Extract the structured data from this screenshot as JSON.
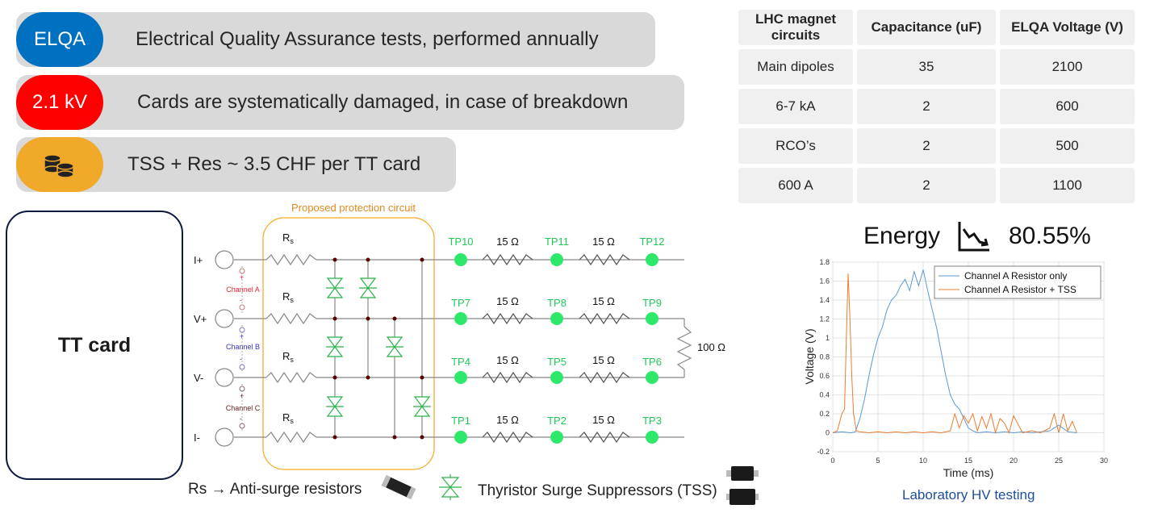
{
  "pills": [
    {
      "tag": "ELQA",
      "text": "Electrical Quality Assurance tests, performed annually",
      "color": "#0070c0"
    },
    {
      "tag": "2.1 kV",
      "text": "Cards are systematically damaged, in case of breakdown",
      "color": "#ff0000"
    },
    {
      "tag_icon": "coins-icon",
      "text": "TSS + Res ~ 3.5 CHF per TT card",
      "color": "#f0a929"
    }
  ],
  "table": {
    "headers": [
      "LHC magnet circuits",
      "Capacitance (uF)",
      "ELQA Voltage (V)"
    ],
    "rows": [
      [
        "Main dipoles",
        "35",
        "2100"
      ],
      [
        "6-7 kA",
        "2",
        "600"
      ],
      [
        "RCO’s",
        "2",
        "500"
      ],
      [
        "600 A",
        "2",
        "1100"
      ]
    ]
  },
  "tt_card": "TT card",
  "circuit": {
    "box_label": "Proposed protection circuit",
    "inputs": [
      "I+",
      "V+",
      "V-",
      "I-"
    ],
    "channels": [
      "Channel A",
      "Channel B",
      "Channel C"
    ],
    "rs_label": "R",
    "rs_sub": "s",
    "test_points": [
      [
        "TP10",
        "TP11",
        "TP12"
      ],
      [
        "TP7",
        "TP8",
        "TP9"
      ],
      [
        "TP4",
        "TP5",
        "TP6"
      ],
      [
        "TP1",
        "TP2",
        "TP3"
      ]
    ],
    "resistor_label": "15 Ω",
    "load_label": "100 Ω",
    "accent_green": "#2ee86a",
    "box_color": "#f5a623"
  },
  "legend": {
    "rs_text": "Rs → Anti-surge resistors",
    "tss_text": "Thyristor Surge Suppressors (TSS)"
  },
  "energy": {
    "label": "Energy",
    "icon": "trend-down-icon",
    "value": "80.55%"
  },
  "caption": "Laboratory HV testing",
  "chart_data": {
    "type": "line",
    "xlabel": "Time (ms)",
    "ylabel": "Voltage (V)",
    "xlim": [
      0,
      30
    ],
    "ylim": [
      -0.2,
      1.8
    ],
    "xticks": [
      0,
      5,
      10,
      15,
      20,
      25,
      30
    ],
    "yticks": [
      -0.2,
      0,
      0.2,
      0.4,
      0.6,
      0.8,
      1,
      1.2,
      1.4,
      1.6,
      1.8
    ],
    "grid": true,
    "legend_position": "top-right",
    "series": [
      {
        "name": "Channel A Resistor only",
        "color": "#5b9bd5",
        "x": [
          0,
          1,
          2,
          2.5,
          3,
          3.5,
          4,
          4.5,
          5,
          5.5,
          6,
          6.5,
          7,
          7.5,
          8,
          8.5,
          9,
          9.5,
          10,
          10.5,
          11,
          11.5,
          12,
          12.5,
          13,
          13.5,
          14,
          14.5,
          15,
          15.5,
          16,
          17,
          18,
          19,
          20,
          21,
          22,
          23,
          24,
          25,
          26,
          27
        ],
        "y": [
          0,
          0.01,
          0,
          0.01,
          0.15,
          0.35,
          0.6,
          0.82,
          1.0,
          1.12,
          1.3,
          1.4,
          1.45,
          1.55,
          1.62,
          1.5,
          1.7,
          1.55,
          1.72,
          1.5,
          1.3,
          1.1,
          0.85,
          0.6,
          0.4,
          0.3,
          0.25,
          0.15,
          0.05,
          0.02,
          0.0,
          0.01,
          0.0,
          0.01,
          0.0,
          0.01,
          0.0,
          0.01,
          0.02,
          0.08,
          0.01,
          0.0
        ]
      },
      {
        "name": "Channel A Resistor + TSS",
        "color": "#ed7d31",
        "x": [
          0,
          0.5,
          1,
          1.3,
          1.5,
          1.7,
          1.9,
          2.1,
          2.3,
          2.6,
          3,
          4,
          5,
          6,
          7,
          8,
          9,
          10,
          11,
          12,
          13,
          13.5,
          14,
          14.5,
          15,
          15.5,
          16,
          16.5,
          17,
          17.5,
          18,
          18.5,
          19,
          19.5,
          20,
          21,
          22,
          23,
          24,
          24.5,
          25,
          25.5,
          26,
          26.5,
          27
        ],
        "y": [
          0,
          0.02,
          0.2,
          0.25,
          1.0,
          1.68,
          1.2,
          0.6,
          0.2,
          0.02,
          0.01,
          0.0,
          0.01,
          0.0,
          0.01,
          0.0,
          0.01,
          0.0,
          0.01,
          0.0,
          0.02,
          0.2,
          0.05,
          0.18,
          0.1,
          0.2,
          0.02,
          0.17,
          0.05,
          0.2,
          0.0,
          0.15,
          0.1,
          0.0,
          0.18,
          0.0,
          0.02,
          0.0,
          0.05,
          0.2,
          0.0,
          0.2,
          0.02,
          0.12,
          0.0
        ]
      }
    ]
  }
}
